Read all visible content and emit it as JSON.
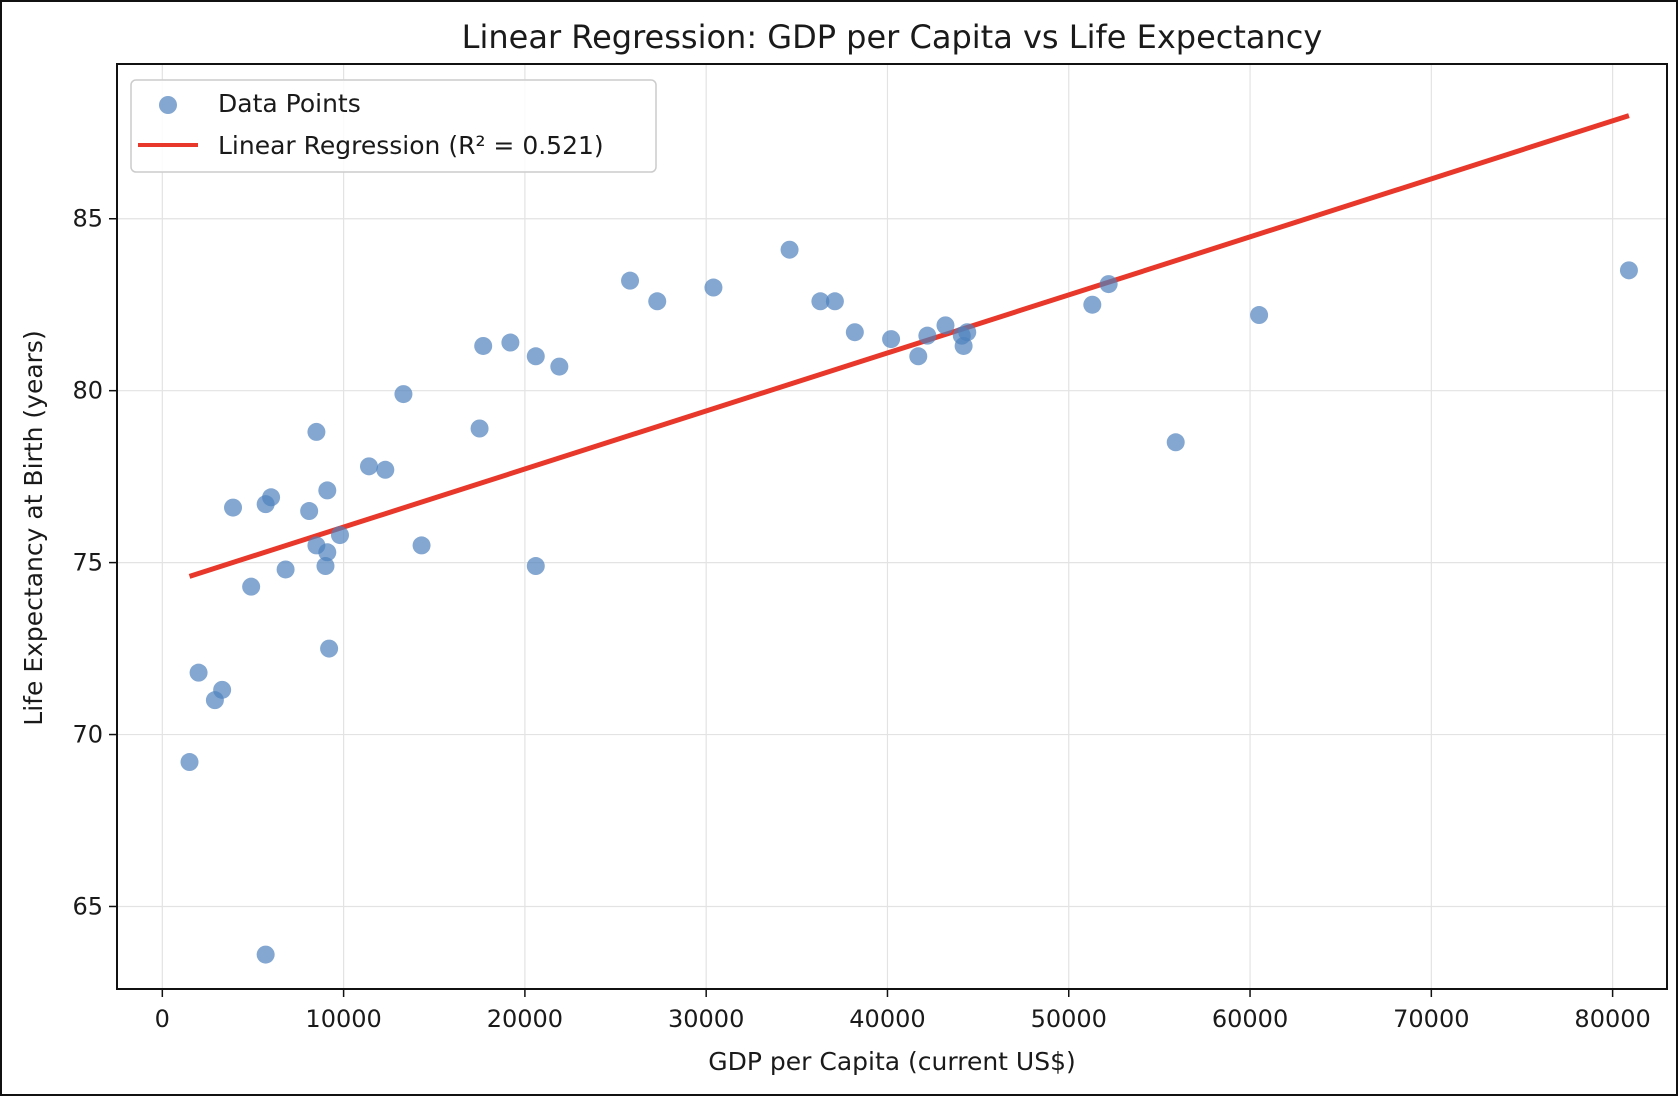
{
  "chart_data": {
    "type": "scatter",
    "title": "Linear Regression: GDP per Capita vs Life Expectancy",
    "xlabel": "GDP per Capita (current US$)",
    "ylabel": "Life Expectancy at Birth (years)",
    "xlim": [
      -2500,
      83000
    ],
    "ylim": [
      62.6,
      89.5
    ],
    "xticks": [
      0,
      10000,
      20000,
      30000,
      40000,
      50000,
      60000,
      70000,
      80000
    ],
    "xtick_labels": [
      "0",
      "10000",
      "20000",
      "30000",
      "40000",
      "50000",
      "60000",
      "70000",
      "80000"
    ],
    "yticks": [
      65,
      70,
      75,
      80,
      85
    ],
    "ytick_labels": [
      "65",
      "70",
      "75",
      "80",
      "85"
    ],
    "grid": true,
    "legend_position": "top-left",
    "series": [
      {
        "name": "Data Points",
        "kind": "scatter",
        "color": "#4f81bd",
        "points": [
          {
            "x": 1500,
            "y": 69.2
          },
          {
            "x": 2000,
            "y": 71.8
          },
          {
            "x": 2900,
            "y": 71.0
          },
          {
            "x": 3300,
            "y": 71.3
          },
          {
            "x": 3900,
            "y": 76.6
          },
          {
            "x": 4900,
            "y": 74.3
          },
          {
            "x": 5700,
            "y": 63.6
          },
          {
            "x": 5700,
            "y": 76.7
          },
          {
            "x": 6000,
            "y": 76.9
          },
          {
            "x": 6800,
            "y": 74.8
          },
          {
            "x": 8100,
            "y": 76.5
          },
          {
            "x": 8500,
            "y": 78.8
          },
          {
            "x": 8500,
            "y": 75.5
          },
          {
            "x": 9000,
            "y": 74.9
          },
          {
            "x": 9100,
            "y": 75.3
          },
          {
            "x": 9100,
            "y": 77.1
          },
          {
            "x": 9200,
            "y": 72.5
          },
          {
            "x": 9800,
            "y": 75.8
          },
          {
            "x": 11400,
            "y": 77.8
          },
          {
            "x": 12300,
            "y": 77.7
          },
          {
            "x": 13300,
            "y": 79.9
          },
          {
            "x": 14300,
            "y": 75.5
          },
          {
            "x": 17500,
            "y": 78.9
          },
          {
            "x": 17700,
            "y": 81.3
          },
          {
            "x": 19200,
            "y": 81.4
          },
          {
            "x": 20600,
            "y": 74.9
          },
          {
            "x": 20600,
            "y": 81.0
          },
          {
            "x": 21900,
            "y": 80.7
          },
          {
            "x": 25800,
            "y": 83.2
          },
          {
            "x": 27300,
            "y": 82.6
          },
          {
            "x": 30400,
            "y": 83.0
          },
          {
            "x": 34600,
            "y": 84.1
          },
          {
            "x": 36300,
            "y": 82.6
          },
          {
            "x": 37100,
            "y": 82.6
          },
          {
            "x": 38200,
            "y": 81.7
          },
          {
            "x": 40200,
            "y": 81.5
          },
          {
            "x": 41700,
            "y": 81.0
          },
          {
            "x": 42200,
            "y": 81.6
          },
          {
            "x": 43200,
            "y": 81.9
          },
          {
            "x": 44100,
            "y": 81.6
          },
          {
            "x": 44200,
            "y": 81.3
          },
          {
            "x": 44400,
            "y": 81.7
          },
          {
            "x": 51300,
            "y": 82.5
          },
          {
            "x": 52200,
            "y": 83.1
          },
          {
            "x": 55900,
            "y": 78.5
          },
          {
            "x": 60500,
            "y": 82.2
          },
          {
            "x": 80900,
            "y": 83.5
          }
        ]
      },
      {
        "name": "Linear Regression (R² = 0.521)",
        "kind": "line",
        "color": "#e8382b",
        "points": [
          {
            "x": 1500,
            "y": 74.6
          },
          {
            "x": 80900,
            "y": 88.0
          }
        ]
      }
    ]
  }
}
